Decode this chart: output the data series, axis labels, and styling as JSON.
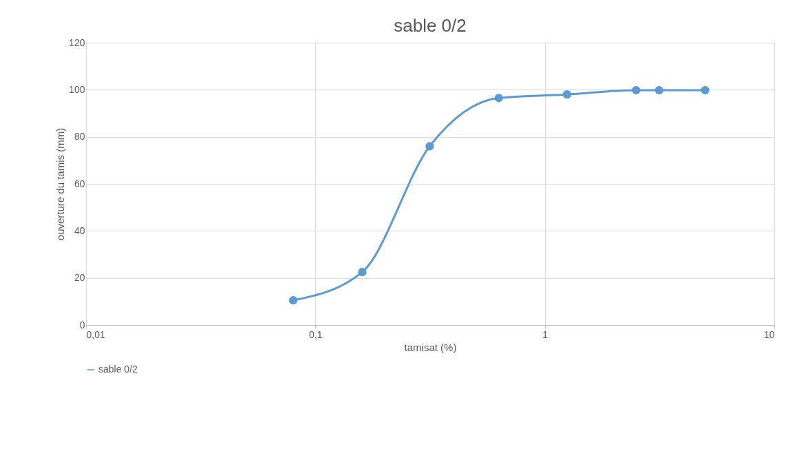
{
  "chart_data": {
    "type": "line",
    "title": "sable 0/2",
    "xlabel": "tamisat  (%)",
    "ylabel": "ouverture du tamis (mm)",
    "x": [
      0.08,
      0.16,
      0.315,
      0.63,
      1.25,
      2.5,
      3.15,
      5
    ],
    "series": [
      {
        "name": "sable 0/2",
        "color": "#5b9bd5",
        "values": [
          10.5,
          22.5,
          76,
          96.5,
          98,
          99.8,
          99.8,
          99.8
        ]
      }
    ],
    "log": "x",
    "xlim": [
      0.01,
      10
    ],
    "xticks": [
      {
        "value": 0.01,
        "label": "0,01"
      },
      {
        "value": 0.1,
        "label": "0,1"
      },
      1,
      10
    ],
    "ylim": [
      0,
      120
    ],
    "yticks": [
      0,
      20,
      40,
      60,
      80,
      100,
      120
    ],
    "grid": true,
    "legend": "bottom",
    "marker": "circle",
    "line_style": "solid"
  }
}
